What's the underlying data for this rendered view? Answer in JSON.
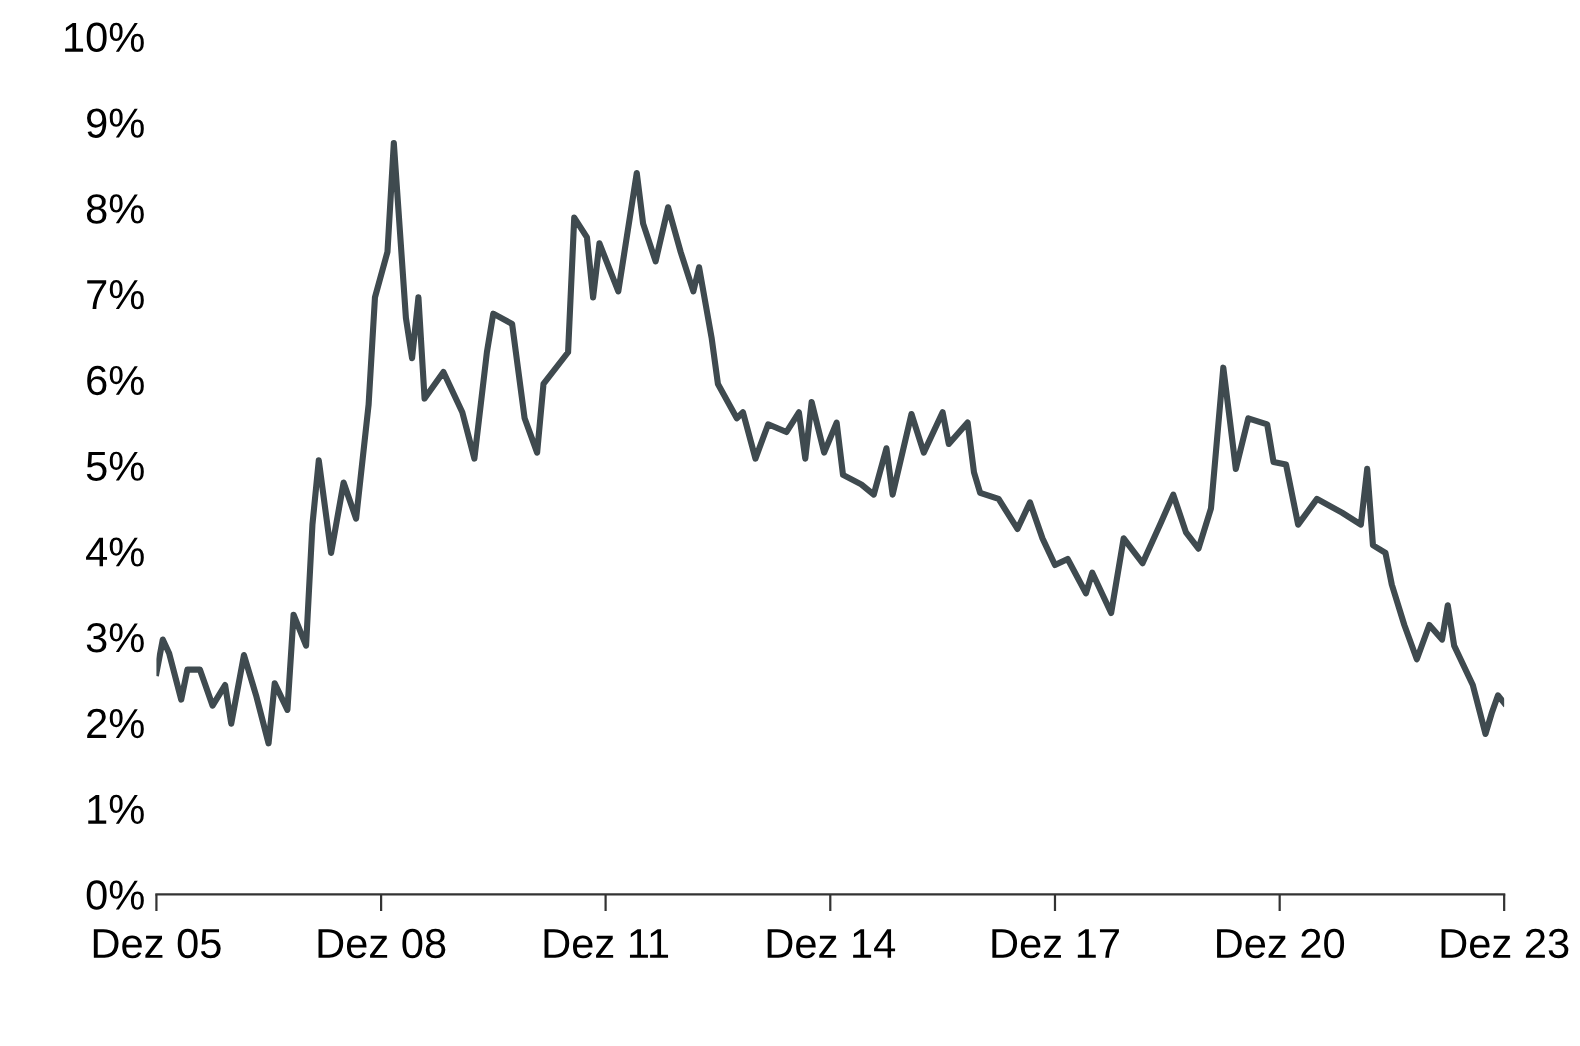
{
  "chart_data": {
    "type": "line",
    "x": [
      "2005-12",
      "2006-01",
      "2006-02",
      "2006-04",
      "2006-05",
      "2006-07",
      "2006-09",
      "2006-11",
      "2006-12",
      "2007-02",
      "2007-04",
      "2007-06",
      "2007-07",
      "2007-09",
      "2007-10",
      "2007-12",
      "2008-01",
      "2008-02",
      "2008-04",
      "2008-06",
      "2008-08",
      "2008-10",
      "2008-11",
      "2009-01",
      "2009-02",
      "2009-04",
      "2009-05",
      "2009-06",
      "2009-07",
      "2009-10",
      "2010-01",
      "2010-03",
      "2010-05",
      "2010-06",
      "2010-09",
      "2010-11",
      "2011-01",
      "2011-02",
      "2011-06",
      "2011-07",
      "2011-09",
      "2011-10",
      "2011-11",
      "2012-02",
      "2012-05",
      "2012-06",
      "2012-08",
      "2012-10",
      "2012-12",
      "2013-02",
      "2013-03",
      "2013-05",
      "2013-06",
      "2013-09",
      "2013-10",
      "2013-12",
      "2014-02",
      "2014-05",
      "2014-07",
      "2014-08",
      "2014-09",
      "2014-11",
      "2015-01",
      "2015-02",
      "2015-05",
      "2015-07",
      "2015-09",
      "2015-10",
      "2016-01",
      "2016-03",
      "2016-06",
      "2016-07",
      "2016-10",
      "2016-11",
      "2016-12",
      "2017-03",
      "2017-06",
      "2017-08",
      "2017-10",
      "2017-12",
      "2018-02",
      "2018-05",
      "2018-06",
      "2018-09",
      "2018-11",
      "2019-02",
      "2019-05",
      "2019-07",
      "2019-09",
      "2019-11",
      "2020-01",
      "2020-03",
      "2020-04",
      "2020-05",
      "2020-07",
      "2020-10",
      "2020-11",
      "2021-01",
      "2021-03",
      "2021-06",
      "2021-10",
      "2022-01",
      "2022-02",
      "2022-03",
      "2022-05",
      "2022-06",
      "2022-08",
      "2022-10",
      "2022-12",
      "2023-02",
      "2023-03",
      "2023-04",
      "2023-07",
      "2023-09",
      "2023-10",
      "2023-11",
      "2023-12"
    ],
    "series": [
      {
        "color": "#3f4a4f",
        "values": [
          2.58,
          2.97,
          2.81,
          2.27,
          2.62,
          2.62,
          2.2,
          2.44,
          1.99,
          2.79,
          2.32,
          1.76,
          2.46,
          2.15,
          3.26,
          2.9,
          4.31,
          5.06,
          3.98,
          4.8,
          4.38,
          5.71,
          6.96,
          7.49,
          8.76,
          6.72,
          6.25,
          6.96,
          5.78,
          6.09,
          5.62,
          5.08,
          6.32,
          6.77,
          6.65,
          5.55,
          5.15,
          5.95,
          6.32,
          7.89,
          7.66,
          6.96,
          7.59,
          7.03,
          8.41,
          7.82,
          7.38,
          8.01,
          7.49,
          7.03,
          7.31,
          6.49,
          5.95,
          5.55,
          5.62,
          5.08,
          5.48,
          5.39,
          5.62,
          5.08,
          5.74,
          5.15,
          5.5,
          4.89,
          4.78,
          4.66,
          5.2,
          4.66,
          5.6,
          5.15,
          5.62,
          5.25,
          5.5,
          4.92,
          4.68,
          4.61,
          4.26,
          4.57,
          4.15,
          3.84,
          3.91,
          3.51,
          3.75,
          3.28,
          4.15,
          3.86,
          4.33,
          4.66,
          4.22,
          4.03,
          4.5,
          6.14,
          5.55,
          4.96,
          5.55,
          5.48,
          5.04,
          5.01,
          4.31,
          4.61,
          4.45,
          4.31,
          4.96,
          4.07,
          3.98,
          3.61,
          3.14,
          2.74,
          3.14,
          2.97,
          3.37,
          2.9,
          2.44,
          1.87,
          2.11,
          2.32,
          2.23
        ]
      }
    ],
    "xlim": [
      "2005-12",
      "2023-12"
    ],
    "xticks": [
      {
        "value": "2005-12",
        "label": "Dez 05"
      },
      {
        "value": "2008-12",
        "label": "Dez 08"
      },
      {
        "value": "2011-12",
        "label": "Dez 11"
      },
      {
        "value": "2014-12",
        "label": "Dez 14"
      },
      {
        "value": "2017-12",
        "label": "Dez 17"
      },
      {
        "value": "2020-12",
        "label": "Dez 20"
      },
      {
        "value": "2023-12",
        "label": "Dez 23"
      }
    ],
    "ylim": [
      0,
      10
    ],
    "yticks": [
      {
        "value": 0,
        "label": "0%"
      },
      {
        "value": 1,
        "label": "1%"
      },
      {
        "value": 2,
        "label": "2%"
      },
      {
        "value": 3,
        "label": "3%"
      },
      {
        "value": 4,
        "label": "4%"
      },
      {
        "value": 5,
        "label": "5%"
      },
      {
        "value": 6,
        "label": "6%"
      },
      {
        "value": 7,
        "label": "7%"
      },
      {
        "value": 8,
        "label": "8%"
      },
      {
        "value": 9,
        "label": "9%"
      },
      {
        "value": 10,
        "label": "10%"
      }
    ],
    "grid": false,
    "legend": false
  }
}
